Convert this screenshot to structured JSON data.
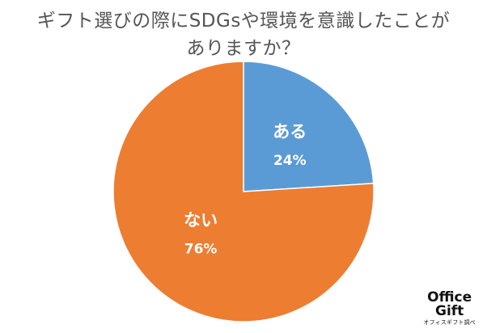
{
  "chart_data": {
    "type": "pie",
    "title_line1": "ギフト選びの際にSDGsや環境を意識したことが",
    "title_line2": "ありますか？",
    "slices": [
      {
        "label": "ある",
        "value": 24,
        "value_label": "24%",
        "color": "#5b9bd5"
      },
      {
        "label": "ない",
        "value": 76,
        "value_label": "76%",
        "color": "#ed7d31"
      }
    ],
    "start_angle_deg": 0,
    "direction": "clockwise",
    "legend": "none"
  },
  "logo": {
    "line1": "Office",
    "line2": "Gift",
    "line3": "オフィスギフト調べ"
  }
}
